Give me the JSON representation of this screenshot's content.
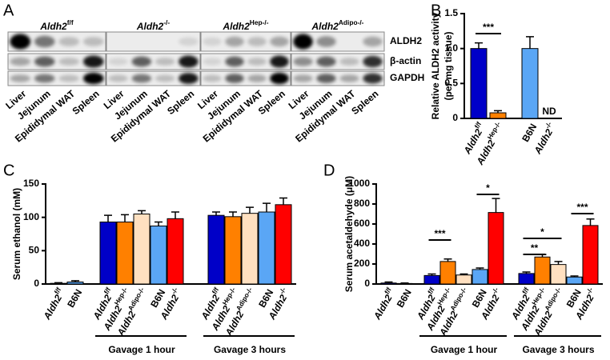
{
  "blot": {
    "panel_label": "A",
    "groups": [
      "Aldh2f/f",
      "Aldh2-/-",
      "Aldh2Hep-/-",
      "Aldh2Adipo-/-"
    ],
    "rows": [
      "ALDH2",
      "β-actin",
      "GAPDH"
    ],
    "lanes": [
      "Liver",
      "Jejunum",
      "Epididymal WAT",
      "Spleen"
    ]
  },
  "chart_data": [
    {
      "type": "bar",
      "panel_label": "B",
      "ylabel": [
        "Relative ALDH2 activity",
        "(per mg tissue)"
      ],
      "categories": [
        "Aldh2f/f",
        "Aldh2Hep-/-",
        "B6N",
        "Aldh2-/-"
      ],
      "values": [
        1.0,
        0.08,
        1.0,
        null
      ],
      "errors": [
        0.08,
        0.03,
        0.17,
        null
      ],
      "colors": [
        "#0000c8",
        "#ff8000",
        "#5aa6f5",
        "#ff0000"
      ],
      "ylim": [
        0,
        1.5
      ],
      "yticks": [
        0,
        0.5,
        {
          "value": 1,
          "label": "1.0"
        },
        1.5
      ],
      "annotations": [
        "***",
        "ND"
      ]
    },
    {
      "type": "bar",
      "panel_label": "C",
      "ylabel": [
        "Serum ethanol (mM)"
      ],
      "categories": [
        "Aldh2f/f",
        "B6N",
        "Aldh2f/f",
        "Aldh2Hep-/-",
        "Aldh2Adipo-/-",
        "B6N",
        "Aldh2-/-",
        "Aldh2f/f",
        "Aldh2Hep-/-",
        "Aldh2Adipo-/-",
        "B6N",
        "Aldh2-/-"
      ],
      "values": [
        1,
        3,
        93,
        93,
        105,
        87,
        98,
        103,
        101,
        106,
        108,
        119
      ],
      "errors": [
        1,
        2,
        10,
        11,
        5,
        6,
        10,
        5,
        7,
        9,
        13,
        10
      ],
      "colors": [
        "#0000c8",
        "#5aa6f5",
        "#0000c8",
        "#ff8000",
        "#ffe0c0",
        "#5aa6f5",
        "#ff0000",
        "#0000c8",
        "#ff8000",
        "#ffe0c0",
        "#5aa6f5",
        "#ff0000"
      ],
      "ylim": [
        0,
        150
      ],
      "yticks": [
        0,
        50,
        100,
        150
      ],
      "groups": [
        "Gavage 1 hour",
        "Gavage 3 hours"
      ],
      "annotations": []
    },
    {
      "type": "bar",
      "panel_label": "D",
      "ylabel": [
        "Serum acetaldehyde (μM)"
      ],
      "categories": [
        "Aldh2f/f",
        "B6N",
        "Aldh2f/f",
        "Aldh2Hep-/-",
        "Aldh2Adipo-/-",
        "B6N",
        "Aldh2-/-",
        "Aldh2f/f",
        "Aldh2Hep-/-",
        "Aldh2Adipo-/-",
        "B6N",
        "Aldh2-/-"
      ],
      "values": [
        10,
        5,
        85,
        225,
        90,
        145,
        715,
        105,
        270,
        195,
        70,
        585
      ],
      "errors": [
        10,
        5,
        15,
        25,
        10,
        15,
        140,
        15,
        25,
        30,
        10,
        65
      ],
      "colors": [
        "#0000c8",
        "#5aa6f5",
        "#0000c8",
        "#ff8000",
        "#ffe0c0",
        "#5aa6f5",
        "#ff0000",
        "#0000c8",
        "#ff8000",
        "#ffe0c0",
        "#5aa6f5",
        "#ff0000"
      ],
      "ylim": [
        0,
        1000
      ],
      "yticks": [
        0,
        200,
        400,
        600,
        800,
        1000
      ],
      "groups": [
        "Gavage 1 hour",
        "Gavage 3 hours"
      ],
      "annotations": [
        "***",
        "*",
        "**",
        "*",
        "***"
      ]
    }
  ]
}
